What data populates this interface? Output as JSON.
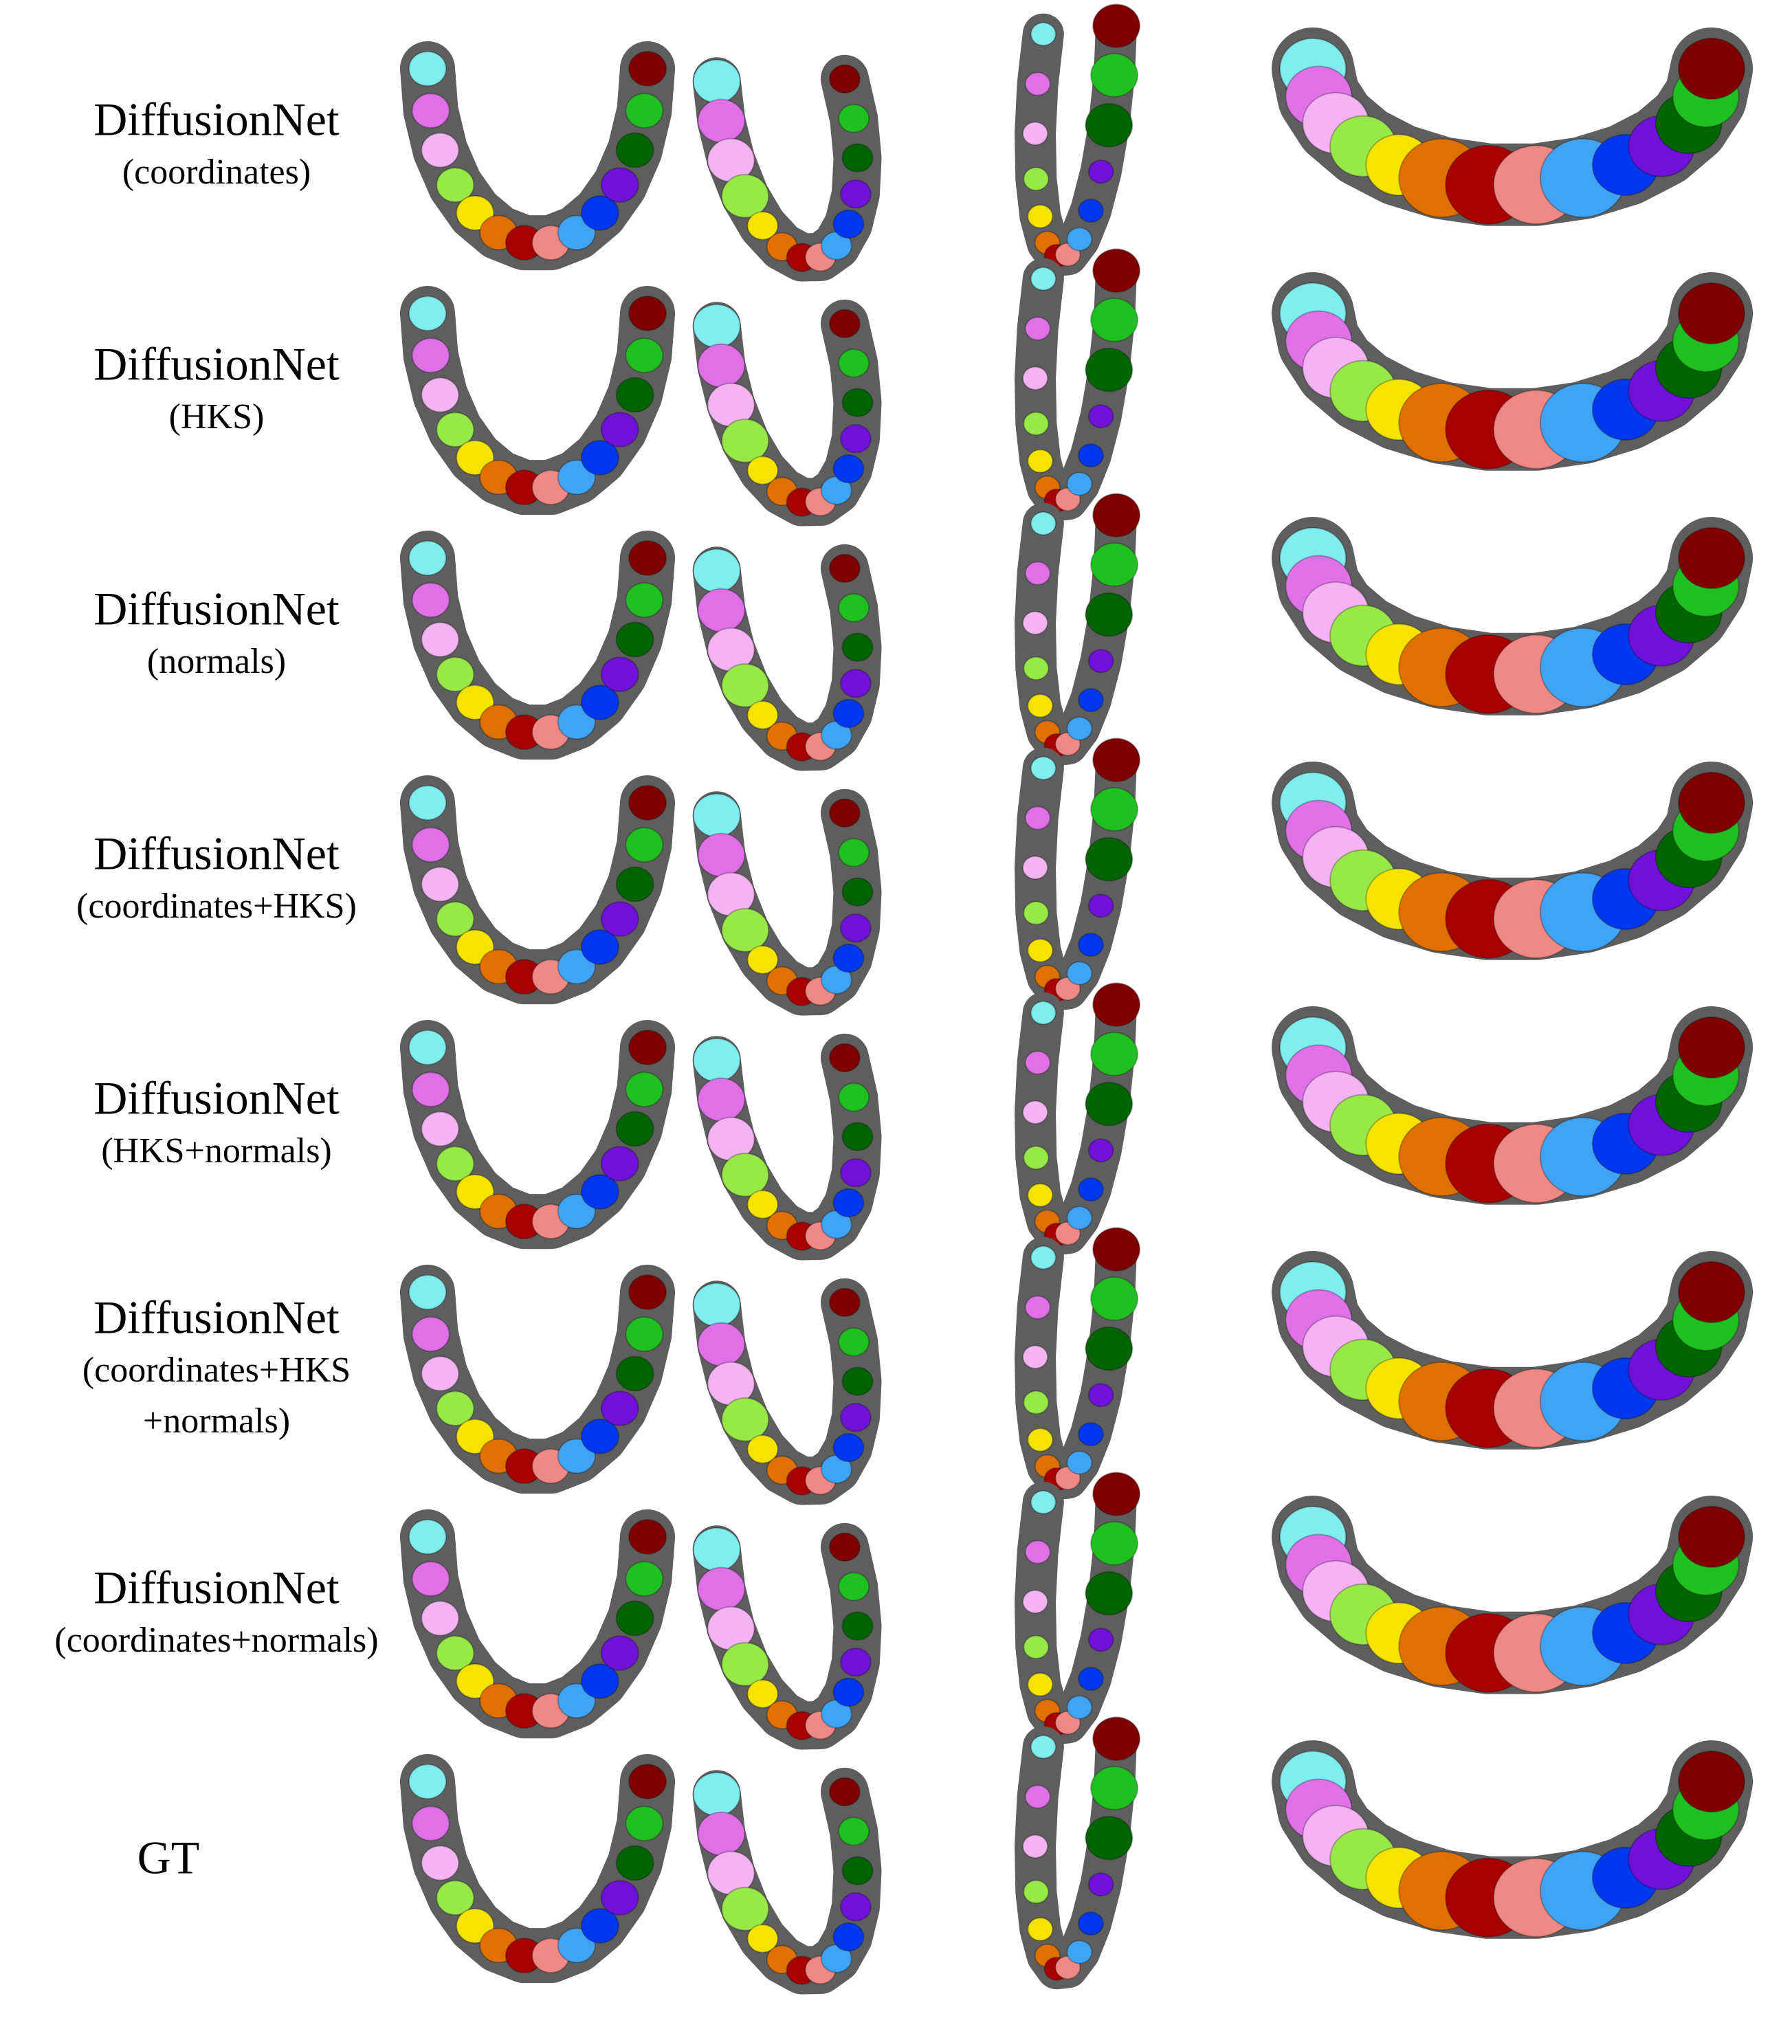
{
  "rows": [
    {
      "label": [
        "DiffusionNet",
        "(coordinates)"
      ]
    },
    {
      "label": [
        "DiffusionNet",
        "(HKS)"
      ]
    },
    {
      "label": [
        "DiffusionNet",
        "(normals)"
      ]
    },
    {
      "label": [
        "DiffusionNet",
        "(coordinates+HKS)"
      ]
    },
    {
      "label": [
        "DiffusionNet",
        "(HKS+normals)"
      ]
    },
    {
      "label": [
        "DiffusionNet",
        "(coordinates+HKS",
        "+normals)"
      ]
    },
    {
      "label": [
        "DiffusionNet",
        "(coordinates+normals)"
      ]
    },
    {
      "label": [
        "GT"
      ]
    }
  ]
}
